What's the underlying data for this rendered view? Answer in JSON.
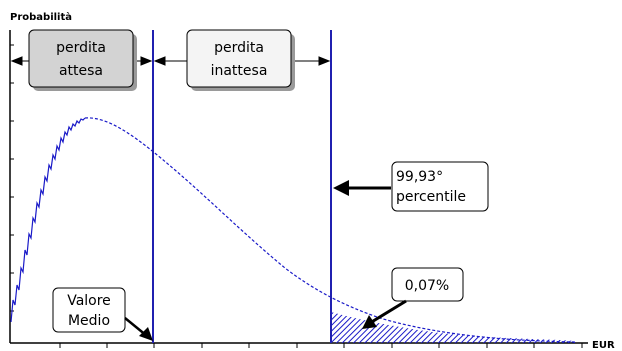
{
  "axes": {
    "y_label": "Probabilità",
    "x_label": "EUR"
  },
  "labels": {
    "expected_loss": [
      "perdita",
      "attesa"
    ],
    "unexpected_loss": [
      "perdita",
      "inattesa"
    ],
    "percentile": [
      "99,93°",
      "percentile"
    ],
    "tail": "0,07%",
    "mean": [
      "Valore",
      "Medio"
    ]
  },
  "colors": {
    "line": "#2020b0",
    "curve": "#1a1ac8",
    "expected_box_fill": "#d3d3d3",
    "unexpected_box_fill": "#f4f4f4"
  }
}
